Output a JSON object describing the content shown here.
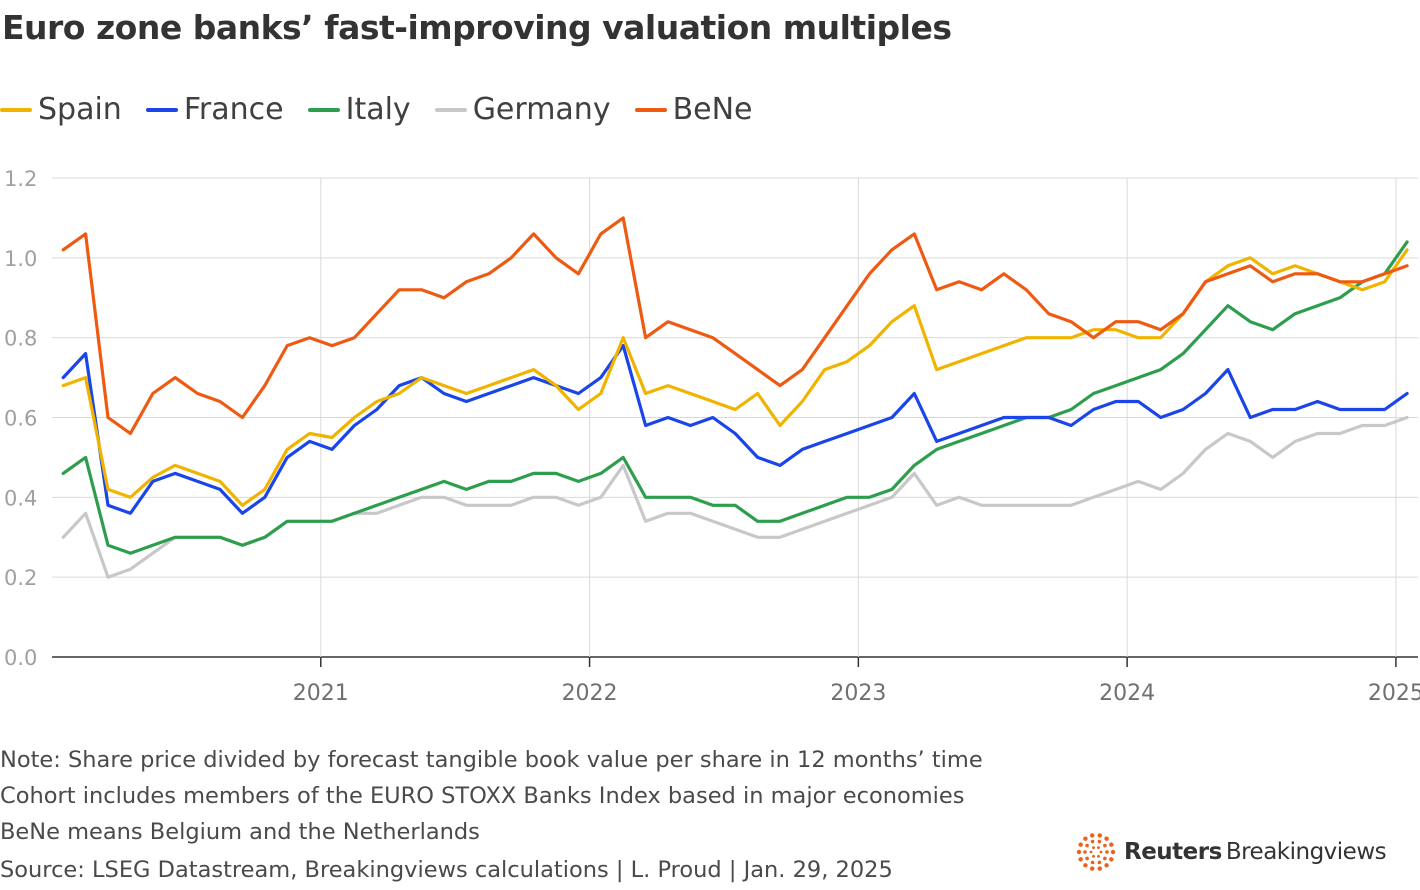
{
  "title": "Euro zone banks’ fast-improving valuation multiples",
  "notes": [
    "Note: Share price divided by forecast tangible book value per share in 12 months’ time",
    "Cohort includes members of the EURO STOXX Banks Index based in major economies",
    "BeNe means Belgium and the Netherlands"
  ],
  "source": "Source: LSEG Datastream, Breakingviews calculations | L. Proud | Jan. 29, 2025",
  "brand": {
    "name_bold": "Reuters",
    "name_light": "Breakingviews",
    "logo_color": "#e8621b"
  },
  "chart_data": {
    "type": "line",
    "ylim": [
      0,
      1.2
    ],
    "xlim": [
      "2020-01-01",
      "2025-01-31"
    ],
    "y_ticks": [
      "0.0",
      "0.2",
      "0.4",
      "0.6",
      "0.8",
      "1.0",
      "1.2"
    ],
    "x_ticks": [
      "2021",
      "2022",
      "2023",
      "2024",
      "2025"
    ],
    "grid": true,
    "legend_position": "top-left",
    "x": [
      "2020-01",
      "2020-02",
      "2020-03",
      "2020-04",
      "2020-05",
      "2020-06",
      "2020-07",
      "2020-08",
      "2020-09",
      "2020-10",
      "2020-11",
      "2020-12",
      "2021-01",
      "2021-02",
      "2021-03",
      "2021-04",
      "2021-05",
      "2021-06",
      "2021-07",
      "2021-08",
      "2021-09",
      "2021-10",
      "2021-11",
      "2021-12",
      "2022-01",
      "2022-02",
      "2022-03",
      "2022-04",
      "2022-05",
      "2022-06",
      "2022-07",
      "2022-08",
      "2022-09",
      "2022-10",
      "2022-11",
      "2022-12",
      "2023-01",
      "2023-02",
      "2023-03",
      "2023-04",
      "2023-05",
      "2023-06",
      "2023-07",
      "2023-08",
      "2023-09",
      "2023-10",
      "2023-11",
      "2023-12",
      "2024-01",
      "2024-02",
      "2024-03",
      "2024-04",
      "2024-05",
      "2024-06",
      "2024-07",
      "2024-08",
      "2024-09",
      "2024-10",
      "2024-11",
      "2024-12",
      "2025-01"
    ],
    "series": [
      {
        "name": "Spain",
        "color": "#f0b400",
        "values": [
          0.68,
          0.7,
          0.42,
          0.4,
          0.45,
          0.48,
          0.46,
          0.44,
          0.38,
          0.42,
          0.52,
          0.56,
          0.55,
          0.6,
          0.64,
          0.66,
          0.7,
          0.68,
          0.66,
          0.68,
          0.7,
          0.72,
          0.68,
          0.62,
          0.66,
          0.8,
          0.66,
          0.68,
          0.66,
          0.64,
          0.62,
          0.66,
          0.58,
          0.64,
          0.72,
          0.74,
          0.78,
          0.84,
          0.88,
          0.72,
          0.74,
          0.76,
          0.78,
          0.8,
          0.8,
          0.8,
          0.82,
          0.82,
          0.8,
          0.8,
          0.86,
          0.94,
          0.98,
          1.0,
          0.96,
          0.98,
          0.96,
          0.94,
          0.92,
          0.94,
          1.02
        ]
      },
      {
        "name": "France",
        "color": "#1a45e8",
        "values": [
          0.7,
          0.76,
          0.38,
          0.36,
          0.44,
          0.46,
          0.44,
          0.42,
          0.36,
          0.4,
          0.5,
          0.54,
          0.52,
          0.58,
          0.62,
          0.68,
          0.7,
          0.66,
          0.64,
          0.66,
          0.68,
          0.7,
          0.68,
          0.66,
          0.7,
          0.78,
          0.58,
          0.6,
          0.58,
          0.6,
          0.56,
          0.5,
          0.48,
          0.52,
          0.54,
          0.56,
          0.58,
          0.6,
          0.66,
          0.54,
          0.56,
          0.58,
          0.6,
          0.6,
          0.6,
          0.58,
          0.62,
          0.64,
          0.64,
          0.6,
          0.62,
          0.66,
          0.72,
          0.6,
          0.62,
          0.62,
          0.64,
          0.62,
          0.62,
          0.62,
          0.66
        ]
      },
      {
        "name": "Italy",
        "color": "#2d9e4e",
        "values": [
          0.46,
          0.5,
          0.28,
          0.26,
          0.28,
          0.3,
          0.3,
          0.3,
          0.28,
          0.3,
          0.34,
          0.34,
          0.34,
          0.36,
          0.38,
          0.4,
          0.42,
          0.44,
          0.42,
          0.44,
          0.44,
          0.46,
          0.46,
          0.44,
          0.46,
          0.5,
          0.4,
          0.4,
          0.4,
          0.38,
          0.38,
          0.34,
          0.34,
          0.36,
          0.38,
          0.4,
          0.4,
          0.42,
          0.48,
          0.52,
          0.54,
          0.56,
          0.58,
          0.6,
          0.6,
          0.62,
          0.66,
          0.68,
          0.7,
          0.72,
          0.76,
          0.82,
          0.88,
          0.84,
          0.82,
          0.86,
          0.88,
          0.9,
          0.94,
          0.96,
          1.04
        ]
      },
      {
        "name": "Germany",
        "color": "#c8c8c8",
        "values": [
          0.3,
          0.36,
          0.2,
          0.22,
          0.26,
          0.3,
          0.3,
          0.3,
          0.28,
          0.3,
          0.34,
          0.34,
          0.34,
          0.36,
          0.36,
          0.38,
          0.4,
          0.4,
          0.38,
          0.38,
          0.38,
          0.4,
          0.4,
          0.38,
          0.4,
          0.48,
          0.34,
          0.36,
          0.36,
          0.34,
          0.32,
          0.3,
          0.3,
          0.32,
          0.34,
          0.36,
          0.38,
          0.4,
          0.46,
          0.38,
          0.4,
          0.38,
          0.38,
          0.38,
          0.38,
          0.38,
          0.4,
          0.42,
          0.44,
          0.42,
          0.46,
          0.52,
          0.56,
          0.54,
          0.5,
          0.54,
          0.56,
          0.56,
          0.58,
          0.58,
          0.6
        ]
      },
      {
        "name": "BeNe",
        "color": "#ee5a12",
        "values": [
          1.02,
          1.06,
          0.6,
          0.56,
          0.66,
          0.7,
          0.66,
          0.64,
          0.6,
          0.68,
          0.78,
          0.8,
          0.78,
          0.8,
          0.86,
          0.92,
          0.92,
          0.9,
          0.94,
          0.96,
          1.0,
          1.06,
          1.0,
          0.96,
          1.06,
          1.1,
          0.8,
          0.84,
          0.82,
          0.8,
          0.76,
          0.72,
          0.68,
          0.72,
          0.8,
          0.88,
          0.96,
          1.02,
          1.06,
          0.92,
          0.94,
          0.92,
          0.96,
          0.92,
          0.86,
          0.84,
          0.8,
          0.84,
          0.84,
          0.82,
          0.86,
          0.94,
          0.96,
          0.98,
          0.94,
          0.96,
          0.96,
          0.94,
          0.94,
          0.96,
          0.98
        ]
      }
    ]
  }
}
